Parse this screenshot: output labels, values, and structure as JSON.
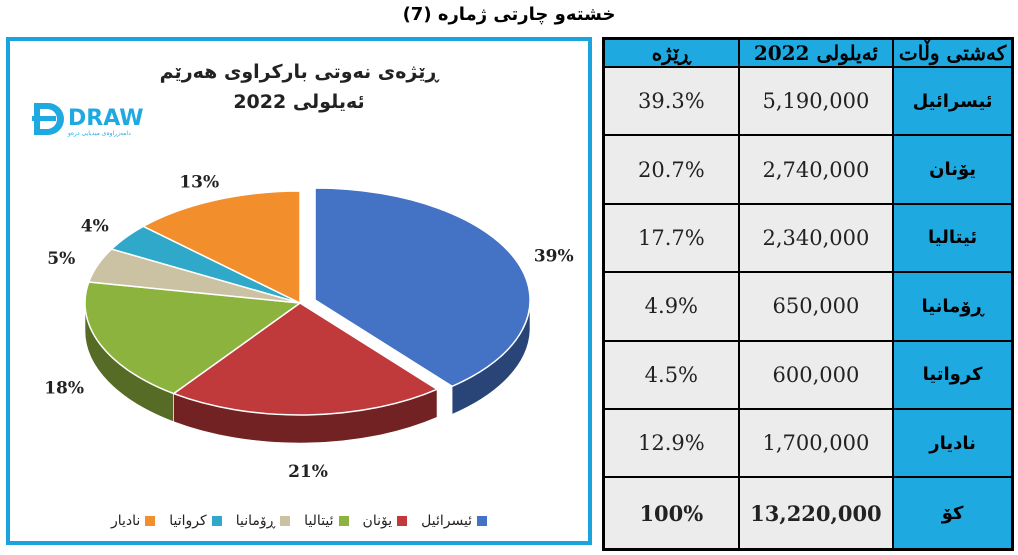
{
  "page_title": "خشتەو چارتی ژمارە (7)",
  "chart_data": {
    "type": "pie",
    "title_line1": "ڕێژەی نەوتی بارکراوی هەرێم",
    "title_line2": "ئەیلولی 2022",
    "slices": [
      {
        "name": "ئیسرائیل",
        "value": 39,
        "label": "39%",
        "color": "#4472c4"
      },
      {
        "name": "یۆنان",
        "value": 21,
        "label": "21%",
        "color": "#c0393b"
      },
      {
        "name": "ئیتالیا",
        "value": 18,
        "label": "18%",
        "color": "#8db33f"
      },
      {
        "name": "ڕۆمانیا",
        "value": 5,
        "label": "5%",
        "color": "#cbc2a4"
      },
      {
        "name": "کرواتیا",
        "value": 4,
        "label": "4%",
        "color": "#2fa8c9"
      },
      {
        "name": "نادیار",
        "value": 13,
        "label": "13%",
        "color": "#f28e2b"
      }
    ],
    "legend_position": "bottom"
  },
  "logo": {
    "text": "DRAW",
    "tagline": "دامەزراوەی میدیایی درەو"
  },
  "table": {
    "headers": {
      "country": "کەشتی وڵات",
      "september": "ئەیلولی 2022",
      "ratio": "ڕێژە"
    },
    "rows": [
      {
        "country": "ئیسرائیل",
        "september": "5,190,000",
        "ratio": "39.3%"
      },
      {
        "country": "یۆنان",
        "september": "2,740,000",
        "ratio": "20.7%"
      },
      {
        "country": "ئیتالیا",
        "september": "2,340,000",
        "ratio": "17.7%"
      },
      {
        "country": "ڕۆمانیا",
        "september": "650,000",
        "ratio": "4.9%"
      },
      {
        "country": "کرواتیا",
        "september": "600,000",
        "ratio": "4.5%"
      },
      {
        "country": "نادیار",
        "september": "1,700,000",
        "ratio": "12.9%"
      }
    ],
    "total": {
      "country": "کۆ",
      "september": "13,220,000",
      "ratio": "100%"
    }
  }
}
